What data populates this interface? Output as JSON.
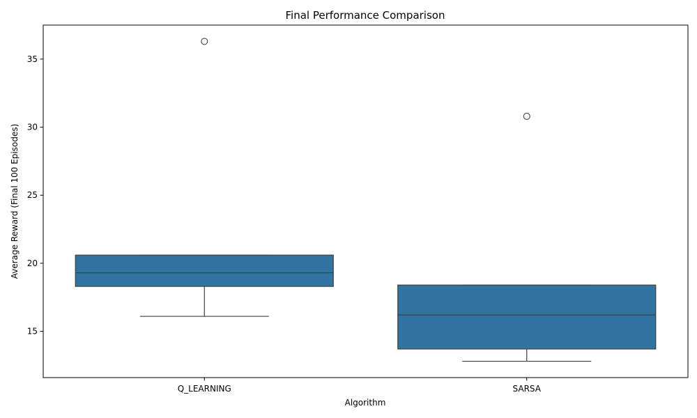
{
  "chart_data": {
    "type": "box",
    "title": "Final Performance Comparison",
    "xlabel": "Algorithm",
    "ylabel": "Average Reward (Final 100 Episodes)",
    "ylim": [
      11.6,
      37.5
    ],
    "yticks": [
      15,
      20,
      25,
      30,
      35
    ],
    "grid": false,
    "box_color": "#3274a1",
    "line_color": "#3f3f3f",
    "categories": [
      "Q_LEARNING",
      "SARSA"
    ],
    "boxes": [
      {
        "category": "Q_LEARNING",
        "whisker_low": 16.1,
        "q1": 18.3,
        "median": 19.3,
        "q3": 20.6,
        "whisker_high": 20.6,
        "outliers": [
          36.3
        ]
      },
      {
        "category": "SARSA",
        "whisker_low": 12.8,
        "q1": 13.7,
        "median": 16.2,
        "q3": 18.4,
        "whisker_high": 18.4,
        "outliers": [
          30.8
        ]
      }
    ]
  }
}
